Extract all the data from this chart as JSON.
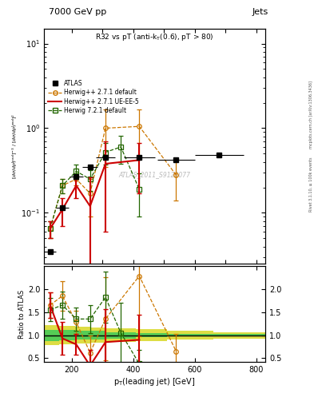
{
  "title_main": "7000 GeV pp",
  "title_right": "Jets",
  "plot_title": "R32 vs pT (anti-k_{T}(0.6), pT > 80)",
  "watermark": "ATLAS_2011_S9128077",
  "ylabel_ratio": "Ratio to ATLAS",
  "xlabel": "p_{T}(leading jet) [GeV]",
  "right_label": "Rivet 3.1.10, ≥ 100k events",
  "right_label2": "mcplots.cern.ch [arXiv:1306.3436]",
  "xlim": [
    110,
    830
  ],
  "ylim_main": [
    0.025,
    15
  ],
  "ylim_ratio": [
    0.42,
    2.5
  ],
  "atlas_x": [
    130,
    170,
    215,
    260,
    310,
    420,
    540,
    680
  ],
  "atlas_y": [
    0.035,
    0.115,
    0.27,
    0.35,
    0.45,
    0.45,
    0.42,
    0.48
  ],
  "atlas_xerr_lo": [
    20,
    20,
    22,
    25,
    30,
    50,
    60,
    80
  ],
  "atlas_xerr_hi": [
    20,
    20,
    23,
    25,
    30,
    50,
    60,
    80
  ],
  "hw271d_x": [
    130,
    170,
    215,
    260,
    310,
    420,
    540
  ],
  "hw271d_y": [
    0.065,
    0.21,
    0.25,
    0.17,
    1.0,
    1.05,
    0.28
  ],
  "hw271d_yerr": [
    0.015,
    0.04,
    0.04,
    0.08,
    0.65,
    0.6,
    0.14
  ],
  "hw271ue_x": [
    130,
    170,
    215,
    260,
    310,
    420
  ],
  "hw271ue_y": [
    0.065,
    0.11,
    0.21,
    0.12,
    0.38,
    0.42
  ],
  "hw271ue_yerr": [
    0.015,
    0.04,
    0.06,
    0.14,
    0.32,
    0.25
  ],
  "hw721d_x": [
    130,
    170,
    215,
    260,
    310,
    360,
    420
  ],
  "hw721d_y": [
    0.065,
    0.21,
    0.31,
    0.25,
    0.52,
    0.6,
    0.19
  ],
  "hw721d_yerr": [
    0.015,
    0.04,
    0.06,
    0.07,
    0.15,
    0.22,
    0.1
  ],
  "ratio_hw271d_x": [
    130,
    170,
    215,
    260,
    310,
    420,
    540
  ],
  "ratio_hw271d_y": [
    1.65,
    1.85,
    1.28,
    0.62,
    1.35,
    2.28,
    0.65
  ],
  "ratio_hw271d_yerr": [
    0.28,
    0.32,
    0.25,
    0.38,
    0.9,
    1.3,
    0.38
  ],
  "ratio_hw271ue_x": [
    130,
    170,
    215,
    260,
    310,
    420
  ],
  "ratio_hw271ue_y": [
    1.65,
    0.93,
    0.8,
    0.34,
    0.85,
    0.9
  ],
  "ratio_hw271ue_yerr": [
    0.28,
    0.35,
    0.22,
    0.35,
    0.72,
    0.55
  ],
  "ratio_hw721d_x": [
    130,
    170,
    215,
    260,
    310,
    360,
    420
  ],
  "ratio_hw721d_y": [
    1.55,
    1.65,
    1.35,
    1.35,
    1.82,
    1.05,
    0.38
  ],
  "ratio_hw721d_yerr": [
    0.25,
    0.3,
    0.25,
    0.3,
    0.55,
    0.65,
    0.3
  ],
  "band_x_edges": [
    110,
    160,
    210,
    260,
    310,
    410,
    510,
    660,
    830
  ],
  "band_green_lo": [
    0.88,
    0.89,
    0.9,
    0.91,
    0.93,
    0.95,
    0.97,
    0.98
  ],
  "band_green_hi": [
    1.12,
    1.11,
    1.1,
    1.09,
    1.07,
    1.05,
    1.03,
    1.02
  ],
  "band_yellow_lo": [
    0.79,
    0.8,
    0.82,
    0.83,
    0.85,
    0.87,
    0.9,
    0.93
  ],
  "band_yellow_hi": [
    1.21,
    1.2,
    1.18,
    1.17,
    1.15,
    1.13,
    1.1,
    1.07
  ],
  "color_hw271d": "#cc7700",
  "color_hw271ue": "#cc0000",
  "color_hw721d": "#226600",
  "color_atlas": "#000000",
  "color_band_green": "#55cc55",
  "color_band_yellow": "#dddd44"
}
